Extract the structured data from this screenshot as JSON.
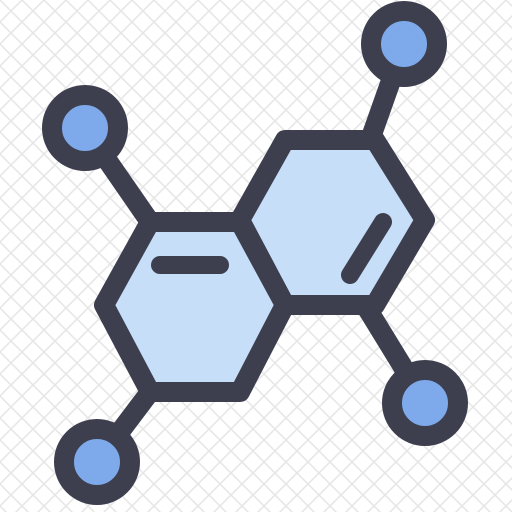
{
  "icon": {
    "name": "molecule-icon",
    "colors": {
      "background": "#ffffff",
      "grid": "#e7e7e7",
      "stroke": "#3d3f4f",
      "hex_fill": "#c6def8",
      "atom_fill": "#7ea9ea"
    }
  }
}
